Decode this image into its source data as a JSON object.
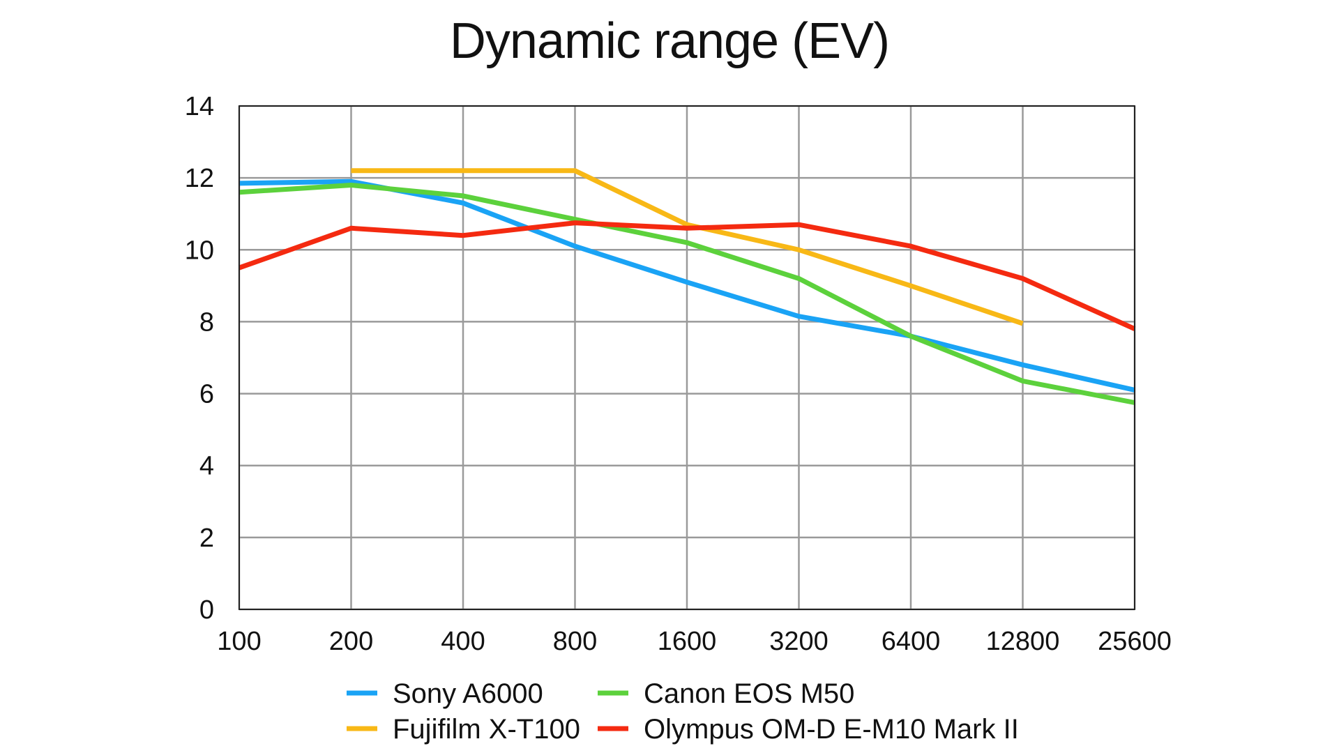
{
  "chart_data": {
    "type": "line",
    "title": "Dynamic range (EV)",
    "xlabel": "",
    "ylabel": "",
    "x_scale": "log2",
    "categories": [
      "100",
      "200",
      "400",
      "800",
      "1600",
      "3200",
      "6400",
      "12800",
      "25600"
    ],
    "ylim": [
      0,
      14
    ],
    "yticks": [
      0,
      2,
      4,
      6,
      8,
      10,
      12,
      14
    ],
    "grid": true,
    "legend_position": "bottom",
    "series": [
      {
        "name": "Sony A6000",
        "color": "#1aa3f5",
        "values": [
          11.85,
          11.9,
          11.3,
          10.1,
          9.1,
          8.15,
          7.6,
          6.8,
          6.1
        ]
      },
      {
        "name": "Fujifilm X-T100",
        "color": "#f8b816",
        "values": [
          null,
          12.2,
          12.2,
          12.2,
          10.7,
          10.0,
          9.0,
          7.95,
          null
        ]
      },
      {
        "name": "Canon EOS M50",
        "color": "#5cd13c",
        "values": [
          11.6,
          11.8,
          11.5,
          10.85,
          10.2,
          9.2,
          7.6,
          6.35,
          5.75
        ]
      },
      {
        "name": "Olympus OM-D E-M10 Mark II",
        "color": "#f42a10",
        "values": [
          9.5,
          10.6,
          10.4,
          10.75,
          10.6,
          10.7,
          10.1,
          9.2,
          7.8
        ]
      }
    ]
  }
}
